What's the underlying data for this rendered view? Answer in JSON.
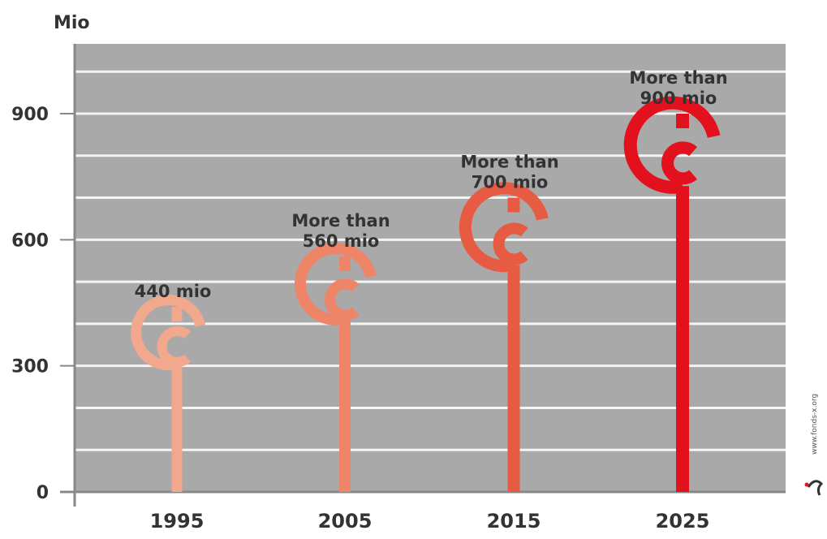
{
  "chart_data": {
    "type": "bar",
    "y_unit_label": "Mio",
    "categories": [
      "1995",
      "2005",
      "2015",
      "2025"
    ],
    "values": [
      440,
      560,
      700,
      900
    ],
    "data_labels": [
      [
        "440 mio"
      ],
      [
        "More than",
        "560 mio"
      ],
      [
        "More than",
        "700 mio"
      ],
      [
        "More than",
        "900 mio"
      ]
    ],
    "y_ticks": [
      "0",
      "300",
      "600",
      "900"
    ],
    "ylim": [
      0,
      1020
    ],
    "grid": true,
    "plot_background": "#a9a9a9",
    "colors": [
      "#f2a88c",
      "#ee8568",
      "#e85b43",
      "#e3101e"
    ],
    "watermark": "www.fonds-x.org"
  }
}
